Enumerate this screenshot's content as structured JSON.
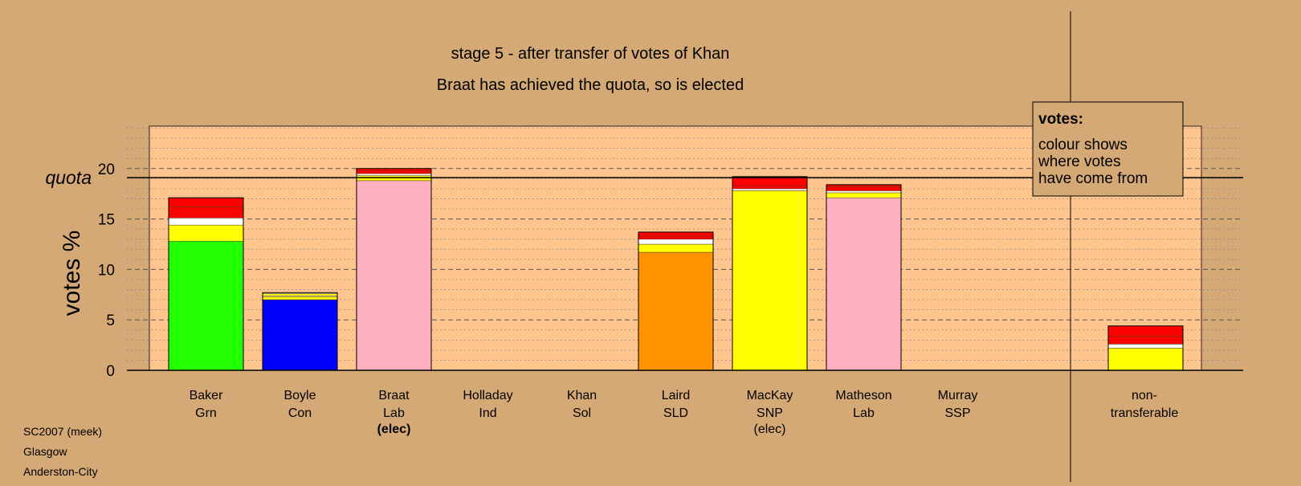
{
  "chart_data": {
    "type": "bar",
    "stacked": true,
    "title": "stage 5 - after transfer of votes of Khan",
    "subtitle": "Braat has achieved the quota, so is elected",
    "ylabel": "votes %",
    "ylim": [
      0,
      24
    ],
    "yticks": [
      "0",
      "5",
      "10",
      "15",
      "20"
    ],
    "grid": true,
    "quota": {
      "label": "quota",
      "value": 19.1
    },
    "legend": {
      "placement": "top-right",
      "heading": "votes:",
      "lines": [
        "colour shows",
        "where votes",
        "have come from"
      ]
    },
    "categories": [
      {
        "name": "Baker",
        "party": "Grn",
        "note": ""
      },
      {
        "name": "Boyle",
        "party": "Con",
        "note": ""
      },
      {
        "name": "Braat",
        "party": "Lab",
        "note": "(elec)"
      },
      {
        "name": "Holladay",
        "party": "Ind",
        "note": ""
      },
      {
        "name": "Khan",
        "party": "Sol",
        "note": ""
      },
      {
        "name": "Laird",
        "party": "SLD",
        "note": ""
      },
      {
        "name": "MacKay",
        "party": "SNP",
        "note": "(elec)"
      },
      {
        "name": "Matheson",
        "party": "Lab",
        "note": ""
      },
      {
        "name": "Murray",
        "party": "SSP",
        "note": ""
      }
    ],
    "nontransferable": {
      "line1": "non-",
      "line2": "transferable"
    },
    "bars": [
      {
        "segments": [
          {
            "value": 12.8,
            "color": "#22FF00"
          },
          {
            "value": 1.6,
            "color": "#FFFF00"
          },
          {
            "value": 0.7,
            "color": "#FFFFFF"
          },
          {
            "value": 1.1,
            "color": "#FF0000"
          },
          {
            "value": 0.9,
            "color": "#FF0000"
          }
        ]
      },
      {
        "segments": [
          {
            "value": 7.0,
            "color": "#0000FF"
          },
          {
            "value": 0.3,
            "color": "#FFFF00"
          },
          {
            "value": 0.1,
            "color": "#FFFFFF"
          },
          {
            "value": 0.2,
            "color": "#FFFF00"
          },
          {
            "value": 0.1,
            "color": "#FFFFFF"
          }
        ]
      },
      {
        "segments": [
          {
            "value": 18.8,
            "color": "#FFB0C0"
          },
          {
            "value": 0.5,
            "color": "#FFFF00"
          },
          {
            "value": 0.2,
            "color": "#FFFFFF"
          },
          {
            "value": 0.3,
            "color": "#FF0000"
          },
          {
            "value": 0.2,
            "color": "#FF0000"
          }
        ]
      },
      {
        "segments": []
      },
      {
        "segments": []
      },
      {
        "segments": [
          {
            "value": 11.7,
            "color": "#FF9200"
          },
          {
            "value": 0.8,
            "color": "#FFFF00"
          },
          {
            "value": 0.5,
            "color": "#FFFFFF"
          },
          {
            "value": 0.3,
            "color": "#FF0000"
          },
          {
            "value": 0.4,
            "color": "#FF0000"
          }
        ]
      },
      {
        "segments": [
          {
            "value": 17.8,
            "color": "#FFFF00"
          },
          {
            "value": 0.2,
            "color": "#FFFFFF"
          },
          {
            "value": 0.3,
            "color": "#FF0000"
          },
          {
            "value": 0.9,
            "color": "#FF0000"
          }
        ]
      },
      {
        "segments": [
          {
            "value": 17.1,
            "color": "#FFB0C0"
          },
          {
            "value": 0.5,
            "color": "#FFFF00"
          },
          {
            "value": 0.2,
            "color": "#FFFFFF"
          },
          {
            "value": 0.4,
            "color": "#FF0000"
          },
          {
            "value": 0.2,
            "color": "#FF0000"
          }
        ]
      },
      {
        "segments": []
      },
      {
        "segments": [
          {
            "value": 2.2,
            "color": "#FFFF00"
          },
          {
            "value": 0.4,
            "color": "#FFFFFF"
          },
          {
            "value": 0.8,
            "color": "#FF0000"
          },
          {
            "value": 1.0,
            "color": "#FF0000"
          }
        ]
      }
    ]
  },
  "footer": {
    "line1": "SC2007 (meek)",
    "line2": "Glasgow",
    "line3": "Anderston-City"
  }
}
